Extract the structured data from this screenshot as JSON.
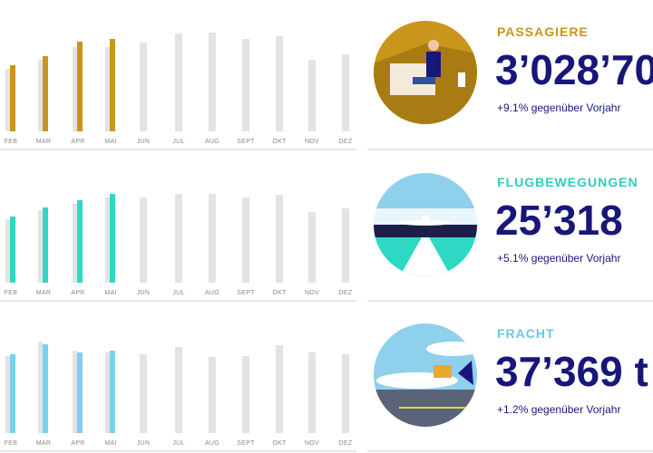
{
  "panels": [
    {
      "title": "PASSAGIERE",
      "value": "3’028’70",
      "change": "+9.1% gegenüber Vorjahr",
      "title_color": "#c8961a",
      "chart_data": {
        "type": "bar",
        "categories": [
          "FEB",
          "MAR",
          "APR",
          "MAI",
          "JUN",
          "JUL",
          "AUG",
          "SEPT",
          "OKT",
          "NOV",
          "DEZ"
        ],
        "ylim": [
          0,
          120
        ],
        "series": [
          {
            "color": "#e3e3e3",
            "values": [
              69,
              79,
              93,
              93,
              98,
              108,
              109,
              102,
              105,
              79,
              85
            ]
          },
          {
            "color": "#c8961a",
            "values": [
              73,
              83,
              99,
              102,
              null,
              null,
              null,
              null,
              null,
              null,
              null
            ]
          }
        ]
      }
    },
    {
      "title": "FLUGBEWEGUNGEN",
      "value": "25’318",
      "change": "+5.1% gegenüber Vorjahr",
      "title_color": "#2ecfb8",
      "chart_data": {
        "type": "bar",
        "categories": [
          "FEB",
          "MAR",
          "APR",
          "MAI",
          "JUN",
          "JUL",
          "AUG",
          "SEPT",
          "OKT",
          "NOV",
          "DEZ"
        ],
        "ylim": [
          0,
          120
        ],
        "series": [
          {
            "color": "#e3e3e3",
            "values": [
              70,
              80,
              87,
              94,
              94,
              98,
              98,
              94,
              97,
              78,
              82
            ]
          },
          {
            "color": "#2ed9c3",
            "values": [
              73,
              83,
              91,
              98,
              null,
              null,
              null,
              null,
              null,
              null,
              null
            ]
          }
        ]
      }
    },
    {
      "title": "FRACHT",
      "value": "37’369 t",
      "change": "+1.2% gegenüber Vorjahr",
      "title_color": "#6cc4ea",
      "chart_data": {
        "type": "bar",
        "categories": [
          "FEB",
          "MAR",
          "APR",
          "MAI",
          "JUN",
          "JUL",
          "AUG",
          "SEPT",
          "OKT",
          "NOV",
          "DEZ"
        ],
        "ylim": [
          0,
          120
        ],
        "series": [
          {
            "color": "#e3e3e3",
            "values": [
              85,
              101,
              91,
              89,
              87,
              95,
              84,
              85,
              97,
              89,
              87
            ]
          },
          {
            "color": "#7dcfee",
            "values": [
              87,
              98,
              89,
              91,
              null,
              null,
              null,
              null,
              null,
              null,
              null
            ]
          }
        ]
      }
    }
  ]
}
